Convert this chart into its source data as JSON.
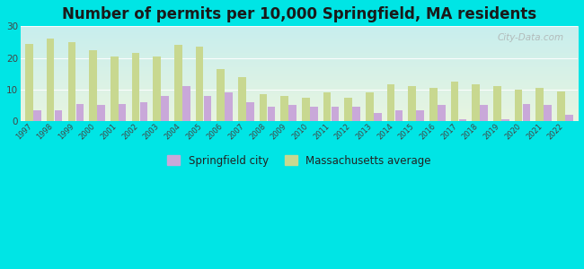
{
  "title": "Number of permits per 10,000 Springfield, MA residents",
  "years": [
    1997,
    1998,
    1999,
    2000,
    2001,
    2002,
    2003,
    2004,
    2005,
    2006,
    2007,
    2008,
    2009,
    2010,
    2011,
    2012,
    2013,
    2014,
    2015,
    2016,
    2017,
    2018,
    2019,
    2020,
    2021,
    2022
  ],
  "springfield": [
    3.5,
    3.5,
    5.5,
    5.0,
    5.5,
    6.0,
    8.0,
    11.0,
    8.0,
    9.0,
    6.0,
    4.5,
    5.0,
    4.5,
    4.5,
    4.5,
    2.5,
    3.5,
    3.5,
    5.0,
    0.5,
    5.0,
    0.5,
    5.5,
    5.0,
    2.0
  ],
  "massachusetts": [
    24.5,
    26.0,
    25.0,
    22.5,
    20.5,
    21.5,
    20.5,
    24.0,
    23.5,
    16.5,
    14.0,
    8.5,
    8.0,
    7.5,
    9.0,
    7.5,
    9.0,
    11.5,
    11.0,
    10.5,
    12.5,
    11.5,
    11.0,
    10.0,
    10.5,
    9.5
  ],
  "springfield_color": "#c9a8d9",
  "massachusetts_color": "#c8d890",
  "background_color": "#00e5e5",
  "plot_bg_top": "#e8f5e0",
  "plot_bg_bottom": "#c8eeee",
  "ylim": [
    0,
    30
  ],
  "yticks": [
    0,
    10,
    20,
    30
  ],
  "title_fontsize": 12,
  "legend_springfield": "Springfield city",
  "legend_massachusetts": "Massachusetts average",
  "watermark": "City-Data.com"
}
